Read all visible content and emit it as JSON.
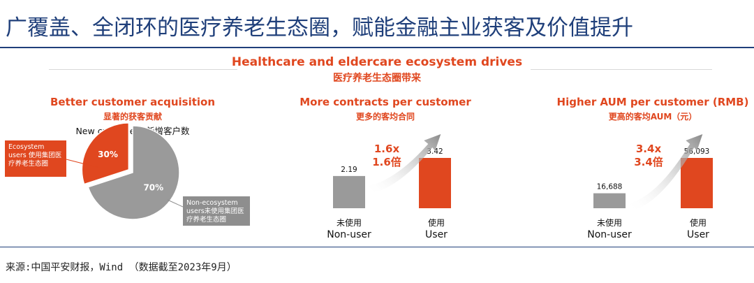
{
  "title": "广覆盖、全闭环的医疗养老生态圈，赋能金融主业获客及价值提升",
  "ecosystem": {
    "en": "Healthcare and eldercare ecosystem drives",
    "zh": "医疗养老生态圈带来"
  },
  "panels": [
    {
      "en": "Better customer acquisition",
      "zh": "显著的获客贡献"
    },
    {
      "en": "More contracts per customer",
      "zh": "更多的客均合同"
    },
    {
      "en": "Higher AUM per customer (RMB)",
      "zh": "更高的客均AUM（元）"
    }
  ],
  "pie_caption": "New customers 新增客户数",
  "callouts": {
    "ecosystem": "Ecosystem users 使用集团医疗养老生态圈",
    "non_ecosystem": "Non-ecosystem users未使用集团医疗养老生态圈"
  },
  "bar_labels": {
    "nonuser_zh": "未使用",
    "nonuser_en": "Non-user",
    "user_zh": "使用",
    "user_en": "User"
  },
  "colors": {
    "accent": "#e0471f",
    "gray": "#9a9a9a",
    "navy": "#1f3f7a"
  },
  "chart_data": [
    {
      "type": "pie",
      "title": "New customers 新增客户数",
      "labels": [
        "Ecosystem users",
        "Non-ecosystem users"
      ],
      "values": [
        30,
        70
      ],
      "value_labels": [
        "30%",
        "70%"
      ],
      "colors": [
        "#e0471f",
        "#9a9a9a"
      ]
    },
    {
      "type": "bar",
      "title": "More contracts per customer",
      "categories": [
        "Non-user",
        "User"
      ],
      "values": [
        2.19,
        3.42
      ],
      "value_labels": [
        "2.19",
        "3.42"
      ],
      "multiplier": [
        "1.6x",
        "1.6倍"
      ],
      "ylim": [
        0,
        3.42
      ],
      "colors": [
        "#9a9a9a",
        "#e0471f"
      ]
    },
    {
      "type": "bar",
      "title": "Higher AUM per customer (RMB)",
      "categories": [
        "Non-user",
        "User"
      ],
      "values": [
        16688,
        56093
      ],
      "value_labels": [
        "16,688",
        "56,093"
      ],
      "multiplier": [
        "3.4x",
        "3.4倍"
      ],
      "ylim": [
        0,
        56093
      ],
      "colors": [
        "#9a9a9a",
        "#e0471f"
      ]
    }
  ],
  "source": "来源:中国平安财报，Wind （数据截至2023年9月）"
}
